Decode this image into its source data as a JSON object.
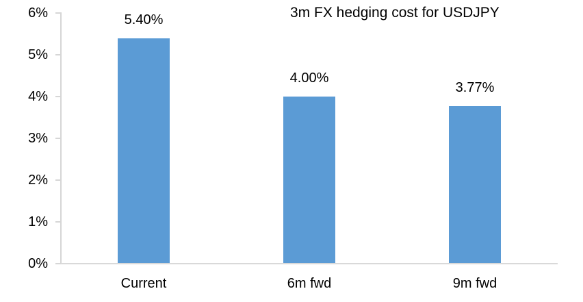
{
  "chart_data": {
    "type": "bar",
    "title": "3m FX hedging cost for USDJPY",
    "categories": [
      "Current",
      "6m fwd",
      "9m fwd"
    ],
    "values": [
      5.4,
      4.0,
      3.77
    ],
    "value_labels": [
      "5.40%",
      "4.00%",
      "3.77%"
    ],
    "xlabel": "",
    "ylabel": "",
    "ylim": [
      0,
      6
    ],
    "y_tick_step": 1,
    "y_tick_labels": [
      "0%",
      "1%",
      "2%",
      "3%",
      "4%",
      "5%",
      "6%"
    ],
    "grid": false,
    "legend": false,
    "colors": {
      "bar": "#5b9bd5",
      "axis": "#d6d6d6",
      "text": "#000000",
      "background": "#ffffff"
    }
  }
}
